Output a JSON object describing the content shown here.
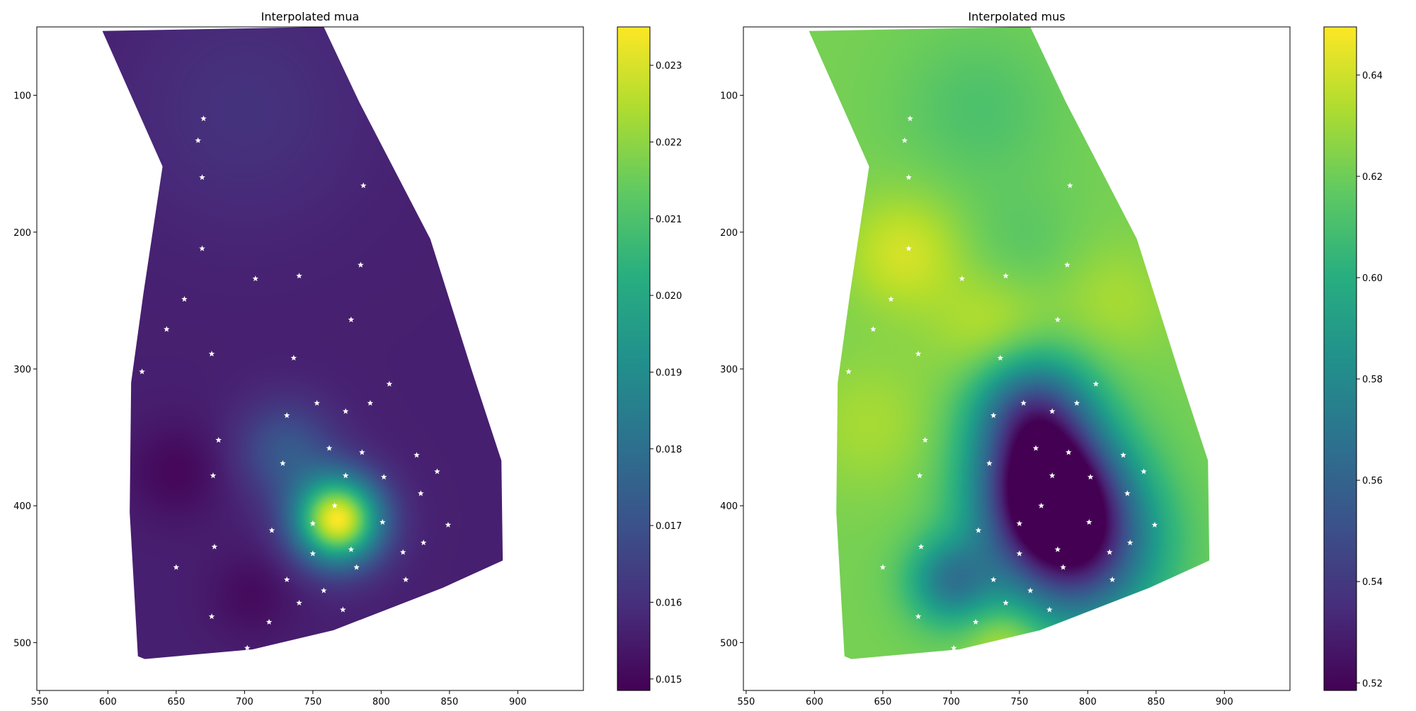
{
  "chart_data": [
    {
      "type": "heatmap",
      "title": "Interpolated mua",
      "xlabel": "",
      "ylabel": "",
      "xlim": [
        548,
        948
      ],
      "ylim": [
        535,
        50
      ],
      "x_ticks": [
        550,
        600,
        650,
        700,
        750,
        800,
        850,
        900
      ],
      "y_ticks": [
        100,
        200,
        300,
        400,
        500
      ],
      "colormap": "viridis",
      "colorbar": {
        "min": 0.01485,
        "max": 0.0235,
        "ticks": [
          "0.015",
          "0.016",
          "0.017",
          "0.018",
          "0.019",
          "0.020",
          "0.021",
          "0.022",
          "0.023"
        ],
        "tick_values": [
          0.015,
          0.016,
          0.017,
          0.018,
          0.019,
          0.02,
          0.021,
          0.022,
          0.023
        ]
      },
      "region_outline": [
        [
          596,
          53
        ],
        [
          758,
          50
        ],
        [
          784,
          105
        ],
        [
          836,
          205
        ],
        [
          866,
          300
        ],
        [
          888,
          367
        ],
        [
          889,
          440
        ],
        [
          845,
          460
        ],
        [
          765,
          491
        ],
        [
          706,
          505
        ],
        [
          627,
          512
        ],
        [
          622,
          510
        ],
        [
          616,
          405
        ],
        [
          617,
          310
        ],
        [
          626,
          245
        ],
        [
          640,
          152
        ]
      ],
      "field": {
        "background": 0.0156,
        "blobs": [
          {
            "x": 768,
            "y": 410,
            "value": 0.0234,
            "sigma": 22
          },
          {
            "x": 730,
            "y": 360,
            "value": 0.0172,
            "sigma": 25
          },
          {
            "x": 700,
            "y": 110,
            "value": 0.0161,
            "sigma": 60
          },
          {
            "x": 650,
            "y": 375,
            "value": 0.015,
            "sigma": 25
          },
          {
            "x": 705,
            "y": 465,
            "value": 0.0151,
            "sigma": 22
          }
        ]
      },
      "markers": {
        "symbol": "star",
        "color": "#ffffff",
        "points": [
          [
            670,
            117
          ],
          [
            666,
            133
          ],
          [
            669,
            160
          ],
          [
            669,
            212
          ],
          [
            656,
            249
          ],
          [
            643,
            271
          ],
          [
            676,
            289
          ],
          [
            625,
            302
          ],
          [
            708,
            234
          ],
          [
            740,
            232
          ],
          [
            785,
            224
          ],
          [
            787,
            166
          ],
          [
            778,
            264
          ],
          [
            736,
            292
          ],
          [
            806,
            311
          ],
          [
            753,
            325
          ],
          [
            774,
            331
          ],
          [
            792,
            325
          ],
          [
            731,
            334
          ],
          [
            681,
            352
          ],
          [
            762,
            358
          ],
          [
            786,
            361
          ],
          [
            826,
            363
          ],
          [
            841,
            375
          ],
          [
            728,
            369
          ],
          [
            677,
            378
          ],
          [
            774,
            378
          ],
          [
            802,
            379
          ],
          [
            829,
            391
          ],
          [
            766,
            400
          ],
          [
            750,
            413
          ],
          [
            801,
            412
          ],
          [
            849,
            414
          ],
          [
            720,
            418
          ],
          [
            778,
            432
          ],
          [
            750,
            435
          ],
          [
            816,
            434
          ],
          [
            831,
            427
          ],
          [
            678,
            430
          ],
          [
            650,
            445
          ],
          [
            782,
            445
          ],
          [
            818,
            454
          ],
          [
            731,
            454
          ],
          [
            758,
            462
          ],
          [
            740,
            471
          ],
          [
            772,
            476
          ],
          [
            676,
            481
          ],
          [
            718,
            485
          ],
          [
            702,
            504
          ]
        ]
      }
    },
    {
      "type": "heatmap",
      "title": "Interpolated mus",
      "xlabel": "",
      "ylabel": "",
      "xlim": [
        548,
        948
      ],
      "ylim": [
        535,
        50
      ],
      "x_ticks": [
        550,
        600,
        650,
        700,
        750,
        800,
        850,
        900
      ],
      "y_ticks": [
        100,
        200,
        300,
        400,
        500
      ],
      "colormap": "viridis",
      "colorbar": {
        "min": 0.5185,
        "max": 0.6495,
        "ticks": [
          "0.52",
          "0.54",
          "0.56",
          "0.58",
          "0.60",
          "0.62",
          "0.64"
        ],
        "tick_values": [
          0.52,
          0.54,
          0.56,
          0.58,
          0.6,
          0.62,
          0.64
        ]
      },
      "region_outline": [
        [
          596,
          53
        ],
        [
          758,
          50
        ],
        [
          784,
          105
        ],
        [
          836,
          205
        ],
        [
          866,
          300
        ],
        [
          888,
          367
        ],
        [
          889,
          440
        ],
        [
          845,
          460
        ],
        [
          765,
          491
        ],
        [
          706,
          505
        ],
        [
          627,
          512
        ],
        [
          622,
          510
        ],
        [
          616,
          405
        ],
        [
          617,
          310
        ],
        [
          626,
          245
        ],
        [
          640,
          152
        ]
      ],
      "field": {
        "background": 0.622,
        "blobs": [
          {
            "x": 665,
            "y": 215,
            "value": 0.641,
            "sigma": 30
          },
          {
            "x": 640,
            "y": 340,
            "value": 0.632,
            "sigma": 35
          },
          {
            "x": 730,
            "y": 270,
            "value": 0.636,
            "sigma": 30
          },
          {
            "x": 820,
            "y": 250,
            "value": 0.632,
            "sigma": 30
          },
          {
            "x": 740,
            "y": 500,
            "value": 0.64,
            "sigma": 20
          },
          {
            "x": 770,
            "y": 385,
            "value": 0.522,
            "sigma": 35
          },
          {
            "x": 790,
            "y": 430,
            "value": 0.535,
            "sigma": 40
          },
          {
            "x": 760,
            "y": 330,
            "value": 0.56,
            "sigma": 30
          },
          {
            "x": 700,
            "y": 455,
            "value": 0.575,
            "sigma": 22
          },
          {
            "x": 720,
            "y": 110,
            "value": 0.612,
            "sigma": 40
          },
          {
            "x": 750,
            "y": 210,
            "value": 0.615,
            "sigma": 30
          }
        ]
      },
      "markers": {
        "symbol": "star",
        "color": "#ffffff",
        "points": [
          [
            670,
            117
          ],
          [
            666,
            133
          ],
          [
            669,
            160
          ],
          [
            669,
            212
          ],
          [
            656,
            249
          ],
          [
            643,
            271
          ],
          [
            676,
            289
          ],
          [
            625,
            302
          ],
          [
            708,
            234
          ],
          [
            740,
            232
          ],
          [
            785,
            224
          ],
          [
            787,
            166
          ],
          [
            778,
            264
          ],
          [
            736,
            292
          ],
          [
            806,
            311
          ],
          [
            753,
            325
          ],
          [
            774,
            331
          ],
          [
            792,
            325
          ],
          [
            731,
            334
          ],
          [
            681,
            352
          ],
          [
            762,
            358
          ],
          [
            786,
            361
          ],
          [
            826,
            363
          ],
          [
            841,
            375
          ],
          [
            728,
            369
          ],
          [
            677,
            378
          ],
          [
            774,
            378
          ],
          [
            802,
            379
          ],
          [
            829,
            391
          ],
          [
            766,
            400
          ],
          [
            750,
            413
          ],
          [
            801,
            412
          ],
          [
            849,
            414
          ],
          [
            720,
            418
          ],
          [
            778,
            432
          ],
          [
            750,
            435
          ],
          [
            816,
            434
          ],
          [
            831,
            427
          ],
          [
            678,
            430
          ],
          [
            650,
            445
          ],
          [
            782,
            445
          ],
          [
            818,
            454
          ],
          [
            731,
            454
          ],
          [
            758,
            462
          ],
          [
            740,
            471
          ],
          [
            772,
            476
          ],
          [
            676,
            481
          ],
          [
            718,
            485
          ],
          [
            702,
            504
          ]
        ]
      }
    }
  ]
}
